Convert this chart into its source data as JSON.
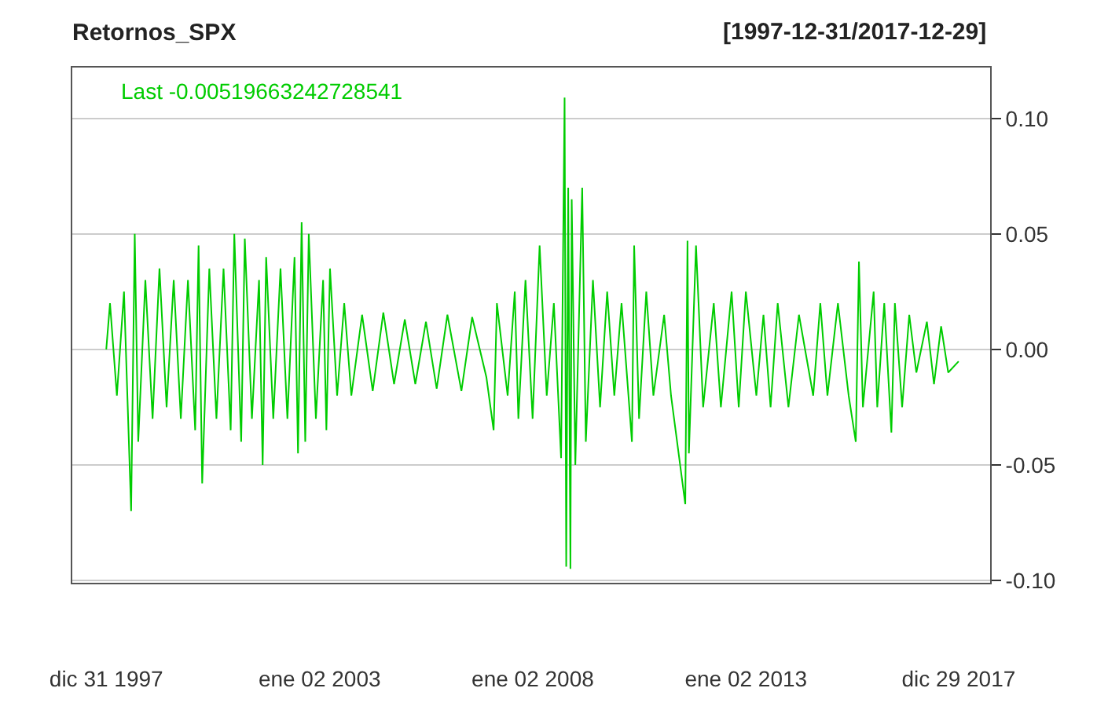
{
  "chart_data": {
    "type": "line",
    "title": "Retornos_SPX",
    "annotations": [
      "[1997-12-31/2017-12-29]",
      "Last -0.00519663242728541"
    ],
    "x": [
      "1997-12-31",
      "1998-02",
      "1998-04",
      "1998-06",
      "1998-08",
      "1998-09",
      "1998-10",
      "1998-12",
      "1999-02",
      "1999-04",
      "1999-06",
      "1999-08",
      "1999-10",
      "1999-12",
      "2000-02",
      "2000-03",
      "2000-04",
      "2000-06",
      "2000-08",
      "2000-10",
      "2000-12",
      "2001-01",
      "2001-03",
      "2001-04",
      "2001-06",
      "2001-08",
      "2001-09",
      "2001-10",
      "2001-12",
      "2002-02",
      "2002-04",
      "2002-06",
      "2002-07",
      "2002-08",
      "2002-09",
      "2002-10",
      "2002-12",
      "2003-02",
      "2003-03",
      "2003-04",
      "2003-06",
      "2003-08",
      "2003-10",
      "2004-01",
      "2004-04",
      "2004-07",
      "2004-10",
      "2005-01",
      "2005-04",
      "2005-07",
      "2005-10",
      "2006-01",
      "2006-05",
      "2006-08",
      "2006-12",
      "2007-02",
      "2007-03",
      "2007-06",
      "2007-08",
      "2007-09",
      "2007-11",
      "2008-01",
      "2008-03",
      "2008-05",
      "2008-07",
      "2008-09",
      "2008-10",
      "2008-10-15",
      "2008-11",
      "2008-11-20",
      "2008-12",
      "2009-01",
      "2009-03",
      "2009-04",
      "2009-06",
      "2009-08",
      "2009-10",
      "2009-12",
      "2010-02",
      "2010-05",
      "2010-05-20",
      "2010-07",
      "2010-09",
      "2010-11",
      "2011-02",
      "2011-04",
      "2011-08",
      "2011-08-20",
      "2011-09",
      "2011-11",
      "2012-01",
      "2012-04",
      "2012-06",
      "2012-09",
      "2012-11",
      "2013-01",
      "2013-04",
      "2013-06",
      "2013-08",
      "2013-10",
      "2014-01",
      "2014-04",
      "2014-08",
      "2014-10",
      "2014-12",
      "2015-03",
      "2015-06",
      "2015-08",
      "2015-08-28",
      "2015-10",
      "2016-01",
      "2016-02",
      "2016-04",
      "2016-06",
      "2016-07",
      "2016-09",
      "2016-11",
      "2017-01",
      "2017-04",
      "2017-06",
      "2017-08",
      "2017-10",
      "2017-12-29"
    ],
    "series": [
      {
        "color": "#00cc00",
        "values": [
          0.0,
          0.02,
          -0.02,
          0.025,
          -0.07,
          0.05,
          -0.04,
          0.03,
          -0.03,
          0.035,
          -0.025,
          0.03,
          -0.03,
          0.03,
          -0.035,
          0.045,
          -0.058,
          0.035,
          -0.03,
          0.035,
          -0.035,
          0.05,
          -0.04,
          0.048,
          -0.03,
          0.03,
          -0.05,
          0.04,
          -0.03,
          0.035,
          -0.03,
          0.04,
          -0.045,
          0.055,
          -0.04,
          0.05,
          -0.03,
          0.03,
          -0.035,
          0.035,
          -0.02,
          0.02,
          -0.02,
          0.015,
          -0.018,
          0.016,
          -0.015,
          0.013,
          -0.015,
          0.012,
          -0.017,
          0.015,
          -0.018,
          0.014,
          -0.012,
          -0.035,
          0.02,
          -0.02,
          0.025,
          -0.03,
          0.03,
          -0.03,
          0.045,
          -0.02,
          0.02,
          -0.047,
          0.109,
          -0.094,
          0.07,
          -0.095,
          0.065,
          -0.05,
          0.07,
          -0.04,
          0.03,
          -0.025,
          0.025,
          -0.02,
          0.02,
          -0.04,
          0.045,
          -0.03,
          0.025,
          -0.02,
          0.015,
          -0.02,
          -0.067,
          0.047,
          -0.045,
          0.045,
          -0.025,
          0.02,
          -0.025,
          0.025,
          -0.025,
          0.025,
          -0.02,
          0.015,
          -0.025,
          0.02,
          -0.025,
          0.015,
          -0.02,
          0.02,
          -0.02,
          0.02,
          -0.02,
          -0.04,
          0.038,
          -0.025,
          0.025,
          -0.025,
          0.02,
          -0.036,
          0.02,
          -0.025,
          0.015,
          -0.01,
          0.012,
          -0.015,
          0.01,
          -0.01,
          -0.0052
        ]
      }
    ],
    "xlim": [
      "1997-03-15",
      "2018-09-25"
    ],
    "xticks": [
      {
        "value": "1997-12-31",
        "label": "dic 31 1997"
      },
      {
        "value": "2003-01-02",
        "label": "ene 02 2003"
      },
      {
        "value": "2008-01-02",
        "label": "ene 02 2008"
      },
      {
        "value": "2013-01-02",
        "label": "ene 02 2013"
      },
      {
        "value": "2017-12-29",
        "label": "dic 29 2017"
      }
    ],
    "ylim": [
      -0.101,
      0.122
    ],
    "yticks": [
      {
        "value": -0.1,
        "label": "-0.10"
      },
      {
        "value": -0.05,
        "label": "-0.05"
      },
      {
        "value": 0,
        "label": "0.00"
      },
      {
        "value": 0.05,
        "label": "0.05"
      },
      {
        "value": 0.1,
        "label": "0.10"
      }
    ],
    "grid": "y",
    "marker": "none",
    "line_style": "solid"
  }
}
